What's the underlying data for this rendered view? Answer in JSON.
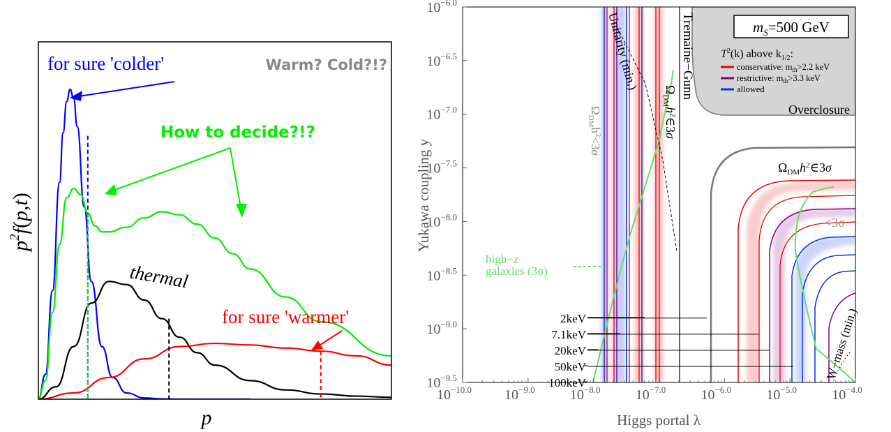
{
  "chart_data": [
    {
      "type": "line",
      "xlabel": "p",
      "ylabel": "p²f(p,t)",
      "ylabel_parts": [
        "p",
        "2",
        "f",
        "(",
        "p",
        ",",
        "t",
        ")"
      ],
      "grid": false,
      "series": [
        {
          "color": "#0000ff",
          "x": [
            0,
            0.02,
            0.04,
            0.06,
            0.07,
            0.08,
            0.09,
            0.1,
            0.11,
            0.13,
            0.15,
            0.18,
            0.21,
            0.25,
            0.3,
            0.35,
            0.4,
            0.5,
            0.6
          ],
          "y": [
            0,
            0.08,
            0.35,
            0.7,
            0.86,
            0.96,
            1.0,
            0.97,
            0.88,
            0.62,
            0.38,
            0.17,
            0.07,
            0.02,
            0.004,
            0.001,
            0,
            0,
            0
          ]
        },
        {
          "color": "#00ee00",
          "x": [
            0,
            0.02,
            0.04,
            0.06,
            0.08,
            0.1,
            0.12,
            0.14,
            0.16,
            0.18,
            0.2,
            0.25,
            0.3,
            0.35,
            0.4,
            0.45,
            0.5,
            0.55,
            0.6,
            0.7,
            0.8,
            1.0
          ],
          "y": [
            0,
            0.06,
            0.28,
            0.5,
            0.65,
            0.68,
            0.66,
            0.6,
            0.56,
            0.54,
            0.54,
            0.555,
            0.585,
            0.605,
            0.595,
            0.565,
            0.52,
            0.47,
            0.42,
            0.33,
            0.25,
            0.14
          ]
        },
        {
          "color": "#000000",
          "x": [
            0,
            0.05,
            0.1,
            0.15,
            0.2,
            0.25,
            0.3,
            0.35,
            0.4,
            0.45,
            0.5,
            0.6,
            0.7,
            0.8,
            0.9,
            1.0
          ],
          "y": [
            0,
            0.04,
            0.17,
            0.31,
            0.38,
            0.37,
            0.32,
            0.26,
            0.2,
            0.15,
            0.11,
            0.06,
            0.03,
            0.017,
            0.01,
            0.006
          ]
        },
        {
          "color": "#ff0000",
          "x": [
            0,
            0.1,
            0.2,
            0.3,
            0.4,
            0.5,
            0.6,
            0.7,
            0.8,
            0.9,
            1.0
          ],
          "y": [
            0,
            0.02,
            0.07,
            0.13,
            0.17,
            0.18,
            0.175,
            0.165,
            0.155,
            0.14,
            0.11
          ]
        }
      ],
      "markers": [
        {
          "color": "#0000ff",
          "x": 0.14,
          "y": 0.85
        },
        {
          "color": "#00ee00",
          "x": 0.14,
          "y": 0.6
        },
        {
          "color": "#000000",
          "x": 0.37,
          "y": 0.26
        },
        {
          "color": "#ff0000",
          "x": 0.8,
          "y": 0.155
        }
      ],
      "annotations": {
        "colder": "for sure 'colder'",
        "warm_cold": "Warm? Cold?!?",
        "decide": "How to decide?!?",
        "thermal": "thermal",
        "warmer": "for sure 'warmer'"
      }
    },
    {
      "type": "line",
      "xlabel": "Higgs portal λ",
      "ylabel": "Yukawa coupling y",
      "x_scale": "log",
      "y_scale": "log",
      "xlim": [
        1e-10,
        0.0001
      ],
      "ylim": [
        3.16e-10,
        1e-06
      ],
      "xticks": [
        {
          "base": "10",
          "exp": "−10.0",
          "v": -10
        },
        {
          "base": "10",
          "exp": "−9.0",
          "v": -9
        },
        {
          "base": "10",
          "exp": "−8.0",
          "v": -8
        },
        {
          "base": "10",
          "exp": "−7.0",
          "v": -7
        },
        {
          "base": "10",
          "exp": "−6.0",
          "v": -6
        },
        {
          "base": "10",
          "exp": "−5.0",
          "v": -5
        },
        {
          "base": "10",
          "exp": "−4.0",
          "v": -4
        }
      ],
      "yticks": [
        {
          "base": "10",
          "exp": "−6.0",
          "v": -6
        },
        {
          "base": "10",
          "exp": "−6.5",
          "v": -6.5
        },
        {
          "base": "10",
          "exp": "−7.0",
          "v": -7
        },
        {
          "base": "10",
          "exp": "−7.5",
          "v": -7.5
        },
        {
          "base": "10",
          "exp": "−8.0",
          "v": -8
        },
        {
          "base": "10",
          "exp": "−8.5",
          "v": -8.5
        },
        {
          "base": "10",
          "exp": "−9.0",
          "v": -9
        },
        {
          "base": "10",
          "exp": "−9.5",
          "v": -9.5
        }
      ],
      "box_label": "m_S=500 GeV",
      "box_label_parts": [
        "m",
        "S",
        "=500 GeV"
      ],
      "legend": {
        "title": "T²(k) above k1/2:",
        "title_parts": [
          "T",
          "2",
          "(k) above k",
          "1/2",
          ":"
        ],
        "items": [
          {
            "color": "#ee0000",
            "label": "conservative: m_th>2.2 keV",
            "parts": [
              "conservative: m",
              "th",
              ">2.2 keV"
            ]
          },
          {
            "color": "#880088",
            "label": "restrictive: m_th>3.3 keV",
            "parts": [
              "restrictive: m",
              "th",
              ">3.3 keV"
            ]
          },
          {
            "color": "#0033ee",
            "label": "allowed",
            "parts": [
              "allowed"
            ]
          }
        ]
      },
      "labels": {
        "overclosure": "Overclosure",
        "tremaine": "Tremaine−Gunn",
        "unitarity": "Unitarity (min.)",
        "omega_lt": "Ω_DM h² < 3σ",
        "omega_in_left": "Ω_DM h² ∈ 3σ",
        "omega_in_right": "Ω_DM h² ∈ 3σ",
        "lt3sigma": "<3σ",
        "highz_1": "high−z",
        "highz_2": "galaxies (3σ)",
        "wmass": "W−mass (min.)"
      },
      "mass_labels": [
        "2keV",
        "7.1keV",
        "20keV",
        "50keV",
        "100keV"
      ],
      "mass_levels_logy": [
        -8.9,
        -9.05,
        -9.2,
        -9.35,
        -9.5
      ],
      "mass_line_end_logx": [
        -6.27,
        -5.47,
        -5.31,
        -4.95,
        -4.55
      ],
      "mass_line_mid_logx": [
        -7.22,
        -7.6,
        -7.93,
        -8.16,
        -8.16
      ],
      "region_colors": {
        "overclosure": "#d4d4d4",
        "omega_contour": "#777777",
        "highz": "#66dd66",
        "conservative": "#ee0000",
        "restrictive": "#880088",
        "allowed": "#0033ee"
      },
      "vertical_lines_logx": [
        {
          "x": -8.05,
          "color": "#0033ee"
        },
        {
          "x": -7.9,
          "color": "#ee0000"
        },
        {
          "x": -7.7,
          "color": "#0033ee"
        },
        {
          "x": -7.55,
          "color": "#ee0000"
        },
        {
          "x": -7.4,
          "color": "#0033ee"
        },
        {
          "x": -7.25,
          "color": "#ee0000"
        },
        {
          "x": -7.1,
          "color": "#0033ee"
        },
        {
          "x": -7.0,
          "color": "#555555"
        }
      ]
    }
  ]
}
